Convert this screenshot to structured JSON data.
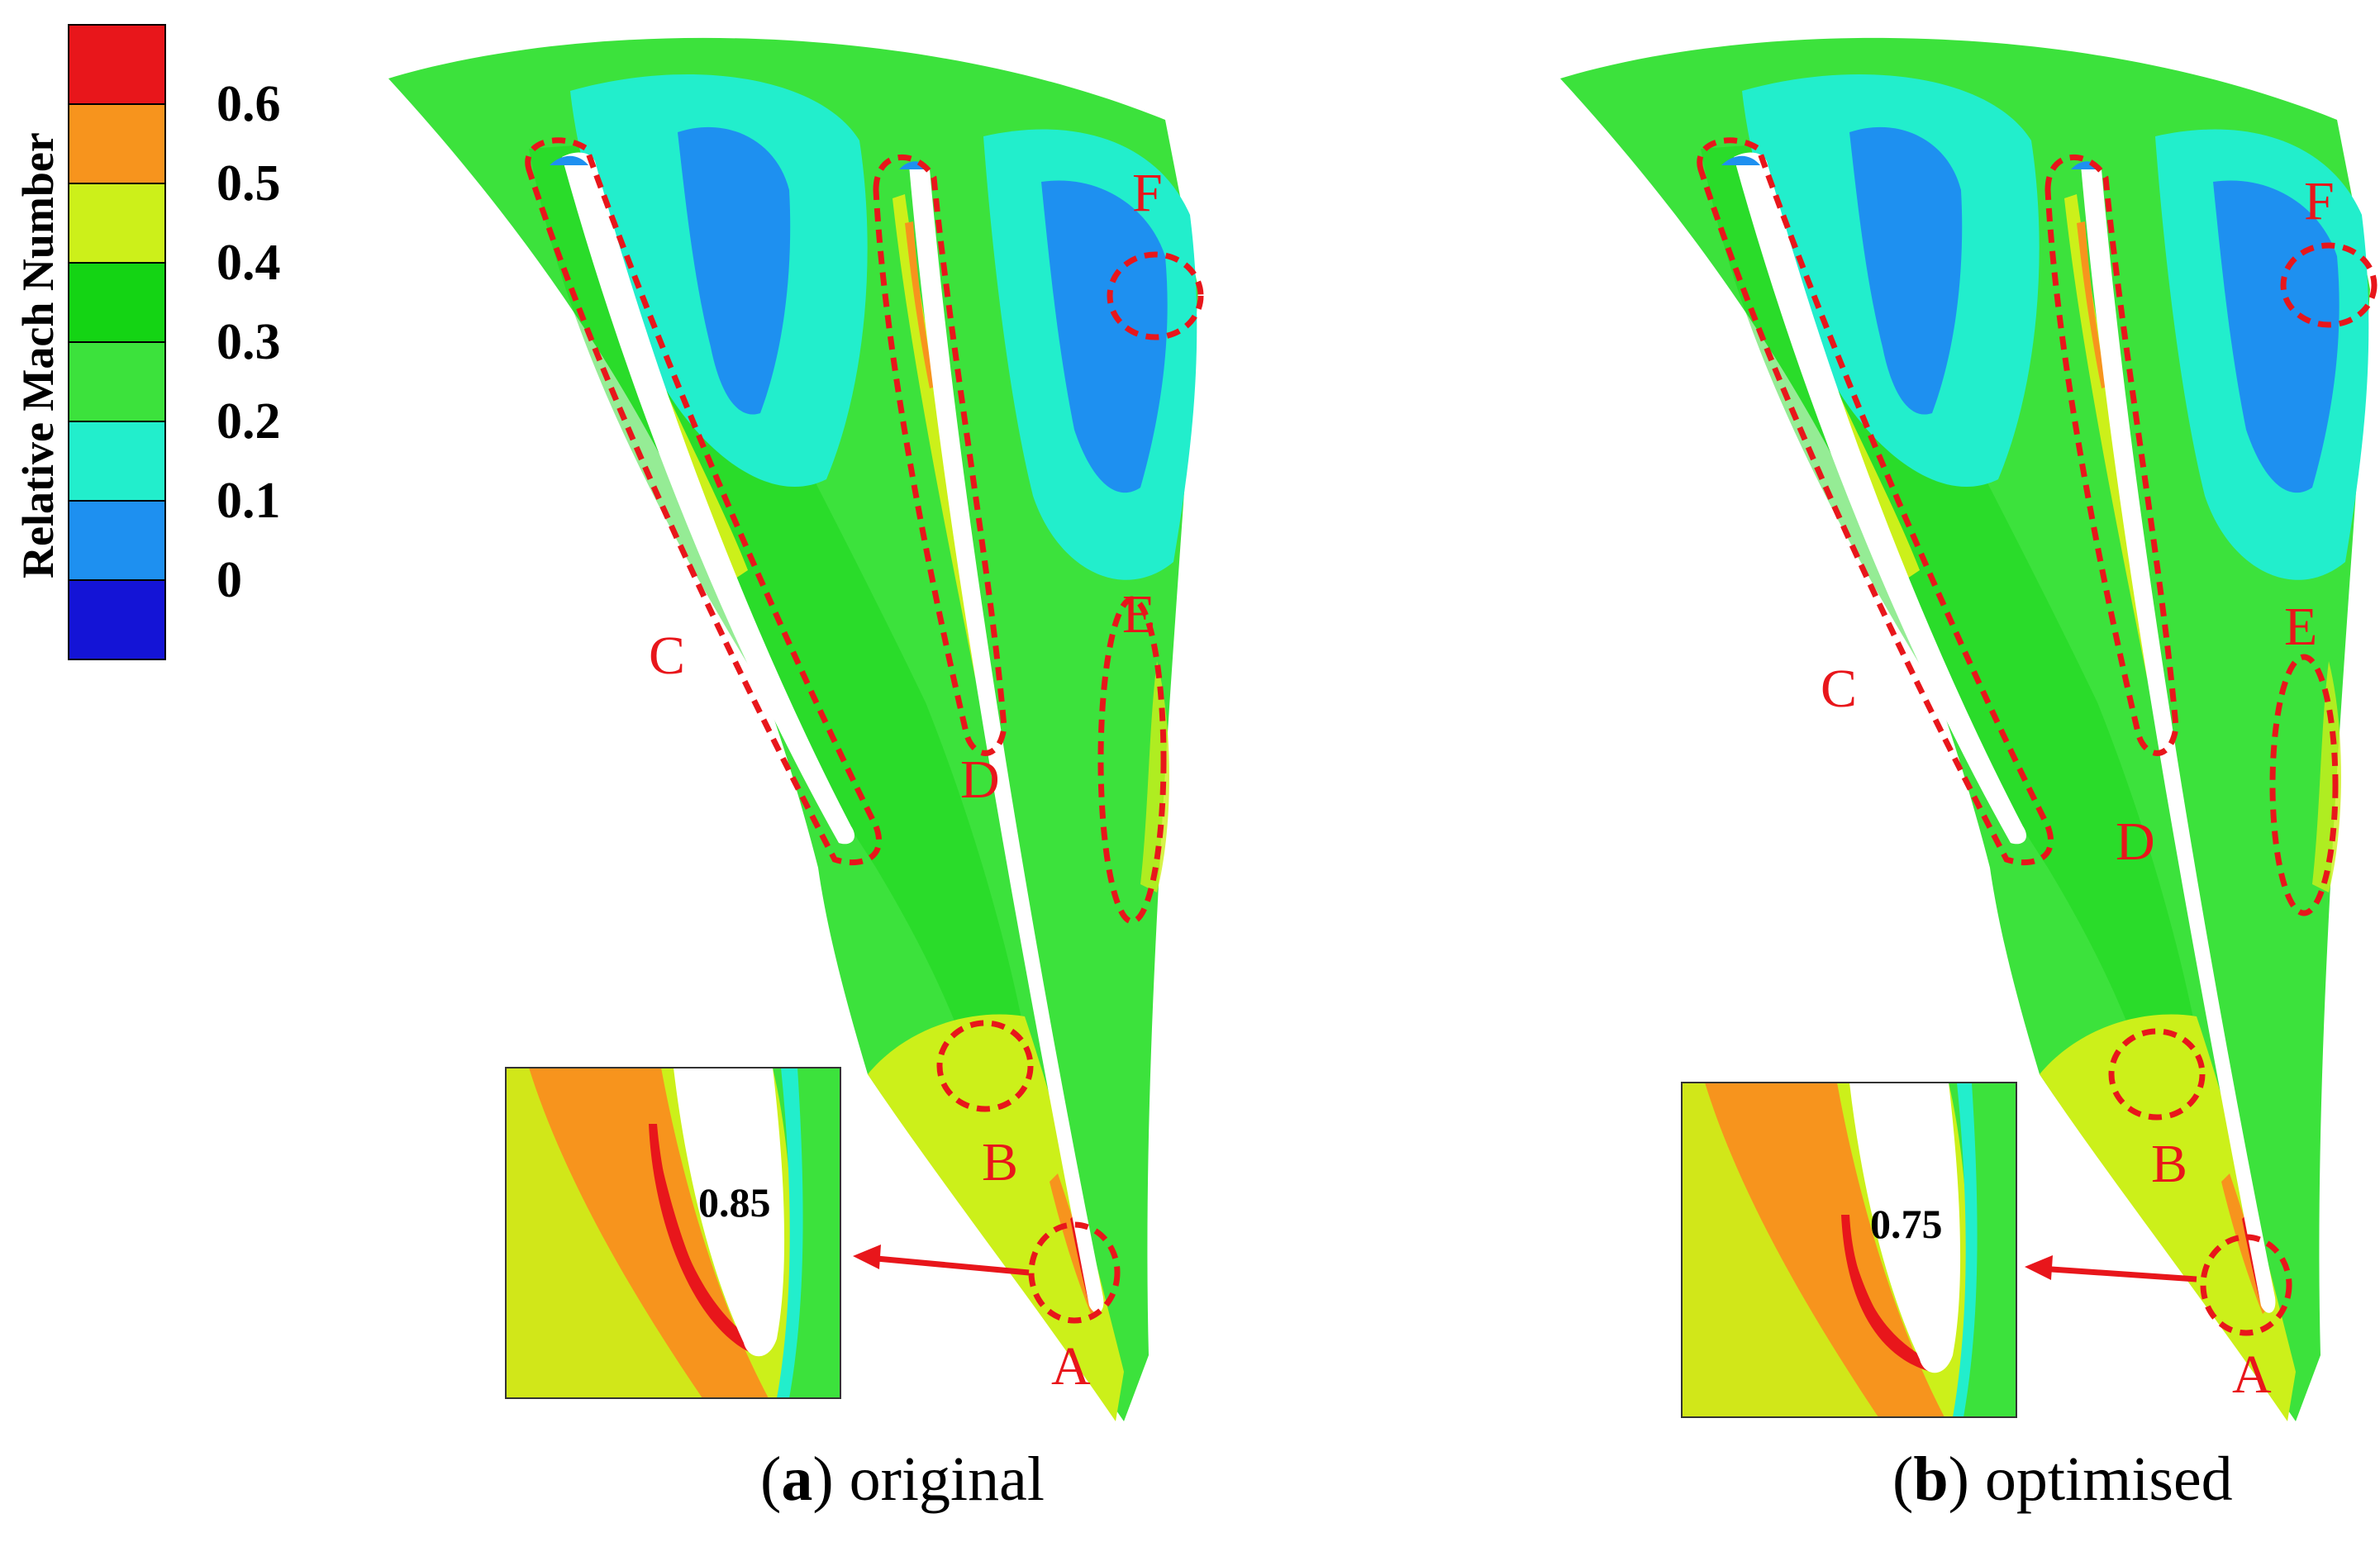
{
  "colorbar": {
    "title": "Relative Mach Number",
    "levels": [
      {
        "label": "",
        "color": "#e8161b"
      },
      {
        "label": "0.6",
        "color": "#f7941d"
      },
      {
        "label": "0.5",
        "color": "#ccf01a"
      },
      {
        "label": "0.4",
        "color": "#14d414"
      },
      {
        "label": "0.3",
        "color": "#3ce23c"
      },
      {
        "label": "0.2",
        "color": "#22eecc"
      },
      {
        "label": "0.1",
        "color": "#1e90f0"
      },
      {
        "label": "0",
        "color": "#1414d6"
      }
    ]
  },
  "panels": [
    {
      "id": "original",
      "caption_letter": "a",
      "caption_text": ") original",
      "caption_open": "(",
      "inset_value": "0.85",
      "markers": [
        "A",
        "B",
        "C",
        "D",
        "E",
        "F"
      ]
    },
    {
      "id": "optimised",
      "caption_letter": "b",
      "caption_text": ") optimised",
      "caption_open": "(",
      "inset_value": "0.75",
      "markers": [
        "A",
        "B",
        "C",
        "D",
        "E",
        "F"
      ]
    }
  ],
  "colors": {
    "annotation": "#e8161b",
    "green": "#3ce23c",
    "cyan": "#22eecc",
    "blue": "#1e90f0",
    "yellow": "#ccf01a",
    "orange": "#f7941d",
    "red": "#e8161b"
  }
}
